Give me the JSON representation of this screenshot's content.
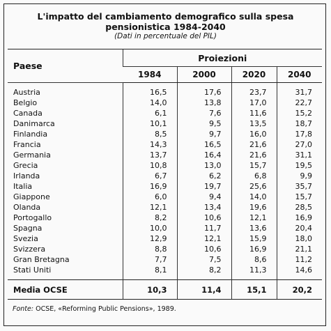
{
  "header": {
    "title": "L'impatto del cambiamento demografico sulla spesa pensionistica 1984-2040",
    "subtitle": "(Dati in percentuale del PIL)"
  },
  "table": {
    "country_header": "Paese",
    "group_header": "Proiezioni",
    "years": [
      "1984",
      "2000",
      "2020",
      "2040"
    ],
    "rows": [
      [
        "Austria",
        "16,5",
        "17,6",
        "23,7",
        "31,7"
      ],
      [
        "Belgio",
        "14,0",
        "13,8",
        "17,0",
        "22,7"
      ],
      [
        "Canada",
        "6,1",
        "7,6",
        "11,6",
        "15,2"
      ],
      [
        "Danimarca",
        "10,1",
        "9,5",
        "13,5",
        "18,7"
      ],
      [
        "Finlandia",
        "8,5",
        "9,7",
        "16,0",
        "17,8"
      ],
      [
        "Francia",
        "14,3",
        "16,5",
        "21,6",
        "27,0"
      ],
      [
        "Germania",
        "13,7",
        "16,4",
        "21,6",
        "31,1"
      ],
      [
        "Grecia",
        "10,8",
        "13,0",
        "15,7",
        "19,5"
      ],
      [
        "Irlanda",
        "6,7",
        "6,2",
        "6,8",
        "9,9"
      ],
      [
        "Italia",
        "16,9",
        "19,7",
        "25,6",
        "35,7"
      ],
      [
        "Giappone",
        "6,0",
        "9,4",
        "14,0",
        "15,7"
      ],
      [
        "Olanda",
        "12,1",
        "13,4",
        "19,6",
        "28,5"
      ],
      [
        "Portogallo",
        "8,2",
        "10,6",
        "12,1",
        "16,9"
      ],
      [
        "Spagna",
        "10,0",
        "11,7",
        "13,6",
        "20,4"
      ],
      [
        "Svezia",
        "12,9",
        "12,1",
        "15,9",
        "18,0"
      ],
      [
        "Svizzera",
        "8,8",
        "10,6",
        "16,9",
        "21,1"
      ],
      [
        "Gran Bretagna",
        "7,7",
        "7,5",
        "8,6",
        "11,2"
      ],
      [
        "Stati Uniti",
        "8,1",
        "8,2",
        "11,3",
        "14,6"
      ]
    ],
    "total": [
      "Media OCSE",
      "10,3",
      "11,4",
      "15,1",
      "20,2"
    ]
  },
  "footer": {
    "source_label": "Fonte:",
    "source_text": "OCSE, «Reforming Public Pensions», 1989."
  }
}
